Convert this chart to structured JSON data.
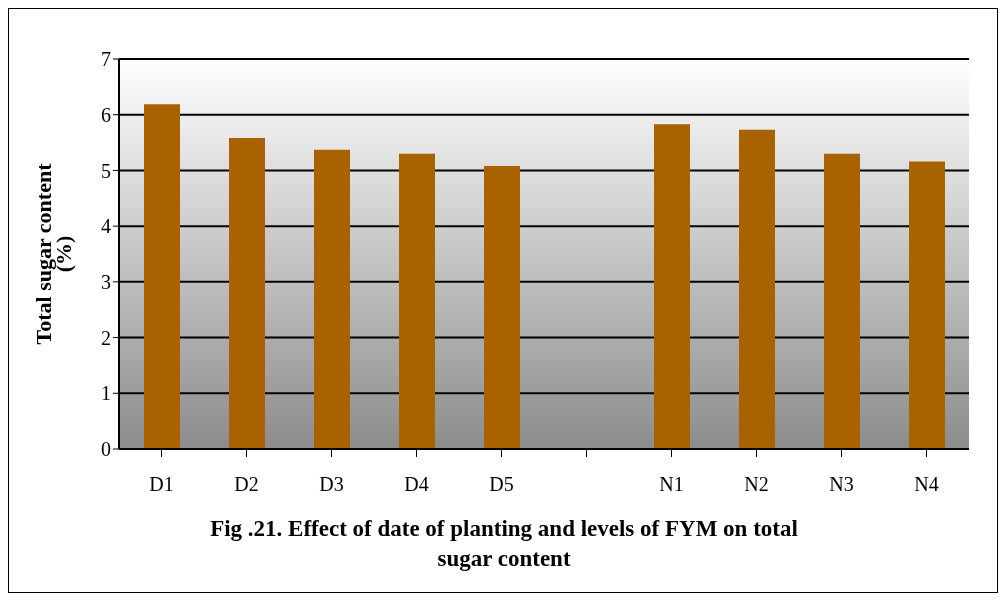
{
  "chart_data": {
    "type": "bar",
    "title": "Fig .21. Effect of date of planting and levels of FYM on total sugar content",
    "ylabel": "Total sugar content (%)",
    "categories": [
      "D1",
      "D2",
      "D3",
      "D4",
      "D5",
      null,
      "N1",
      "N2",
      "N3",
      "N4"
    ],
    "values": [
      6.19,
      5.58,
      5.37,
      5.3,
      5.08,
      null,
      5.83,
      5.73,
      5.3,
      5.16
    ],
    "color": "#a86300",
    "ylim": [
      0,
      7
    ],
    "yticks": [
      0,
      1,
      2,
      3,
      4,
      5,
      6,
      7
    ],
    "grid": "y"
  }
}
